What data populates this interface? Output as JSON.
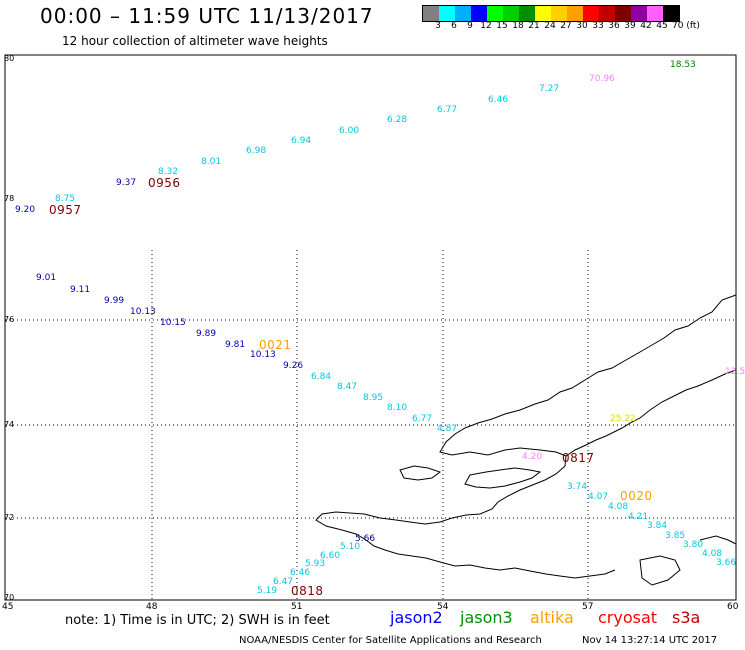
{
  "header": {
    "title": "00:00 – 11:59 UTC 11/13/2017",
    "subtitle": "12 hour collection of altimeter wave heights"
  },
  "legend": {
    "colors": [
      "#808080",
      "#00ffff",
      "#00b0ff",
      "#0000ff",
      "#00ff00",
      "#00d000",
      "#009000",
      "#ffff00",
      "#ffd000",
      "#ffa000",
      "#ff0000",
      "#c00000",
      "#800000",
      "#9000a0",
      "#ff60ff",
      "#000000"
    ],
    "labels": [
      "3",
      "6",
      "9",
      "12",
      "15",
      "18",
      "21",
      "24",
      "27",
      "30",
      "33",
      "36",
      "39",
      "42",
      "45",
      "70 (ft)"
    ]
  },
  "axes": {
    "y_labels": [
      "80",
      "78",
      "76",
      "74",
      "72",
      "70"
    ],
    "x_labels": [
      "45",
      "48",
      "51",
      "54",
      "57",
      "60"
    ]
  },
  "observations": [
    {
      "text": "18.53",
      "color": "#008000"
    },
    {
      "text": "70.96",
      "color": "#ff80ff"
    },
    {
      "text": "7.27",
      "color": "#00c8e0"
    },
    {
      "text": "6.46",
      "color": "#00c8e0"
    },
    {
      "text": "6.77",
      "color": "#00c8e0"
    },
    {
      "text": "6.28",
      "color": "#00c8e0"
    },
    {
      "text": "6.00",
      "color": "#00c8e0"
    },
    {
      "text": "6.94",
      "color": "#00c8e0"
    },
    {
      "text": "6.98",
      "color": "#00c8e0"
    },
    {
      "text": "8.01",
      "color": "#00c8e0"
    },
    {
      "text": "8.32",
      "color": "#00c8e0"
    },
    {
      "text": "9.37",
      "color": "#0000b0"
    },
    {
      "text": "8.75",
      "color": "#00c8e0"
    },
    {
      "text": "9.20",
      "color": "#0000b0"
    },
    {
      "text": "9.01",
      "color": "#0000b0"
    },
    {
      "text": "9.11",
      "color": "#0000b0"
    },
    {
      "text": "9.99",
      "color": "#0000b0"
    },
    {
      "text": "10.13",
      "color": "#0000b0"
    },
    {
      "text": "10.15",
      "color": "#0000b0"
    },
    {
      "text": "9.89",
      "color": "#0000b0"
    },
    {
      "text": "9.81",
      "color": "#0000b0"
    },
    {
      "text": "10.13",
      "color": "#0000b0"
    },
    {
      "text": "9.26",
      "color": "#0000b0"
    },
    {
      "text": "6.84",
      "color": "#00c8e0"
    },
    {
      "text": "8.47",
      "color": "#00c8e0"
    },
    {
      "text": "8.95",
      "color": "#00c8e0"
    },
    {
      "text": "8.10",
      "color": "#00c8e0"
    },
    {
      "text": "6.77",
      "color": "#00c8e0"
    },
    {
      "text": "4.87",
      "color": "#00c8e0"
    },
    {
      "text": "3.74",
      "color": "#00c8e0"
    },
    {
      "text": "4.07",
      "color": "#00c8e0"
    },
    {
      "text": "4.08",
      "color": "#00c8e0"
    },
    {
      "text": "4.21",
      "color": "#00c8e0"
    },
    {
      "text": "3.84",
      "color": "#00c8e0"
    },
    {
      "text": "3.85",
      "color": "#00c8e0"
    },
    {
      "text": "3.80",
      "color": "#00c8e0"
    },
    {
      "text": "4.08",
      "color": "#00c8e0"
    },
    {
      "text": "3.66",
      "color": "#00c8e0"
    },
    {
      "text": "5.19",
      "color": "#00c8e0"
    },
    {
      "text": "6.47",
      "color": "#00c8e0"
    },
    {
      "text": "6.46",
      "color": "#00c8e0"
    },
    {
      "text": "5.93",
      "color": "#00c8e0"
    },
    {
      "text": "6.60",
      "color": "#00c8e0"
    },
    {
      "text": "5.10",
      "color": "#00c8e0"
    },
    {
      "text": "5.66",
      "color": "#000080"
    },
    {
      "text": "4.20",
      "color": "#ff80ff"
    },
    {
      "text": "25.22",
      "color": "#e0e000"
    },
    {
      "text": "12.5",
      "color": "#ff80ff"
    }
  ],
  "passes": [
    {
      "text": "0957",
      "color": "#800000"
    },
    {
      "text": "0956",
      "color": "#800000"
    },
    {
      "text": "0021",
      "color": "#ffa000"
    },
    {
      "text": "0817",
      "color": "#800000"
    },
    {
      "text": "0020",
      "color": "#ffa000"
    },
    {
      "text": "0818",
      "color": "#800000"
    }
  ],
  "footer": {
    "note": "note:  1) Time is in UTC;  2) SWH is in feet",
    "satellites": [
      {
        "name": "jason2",
        "color": "#0000ff"
      },
      {
        "name": "jason3",
        "color": "#009000"
      },
      {
        "name": "altika",
        "color": "#ffa000"
      },
      {
        "name": "cryosat",
        "color": "#ff0000"
      },
      {
        "name": "s3a",
        "color": "#c00000"
      }
    ],
    "credit": "NOAA/NESDIS Center for Satellite Applications and Research",
    "timestamp": "Nov 14 13:27:14 UTC 2017"
  }
}
